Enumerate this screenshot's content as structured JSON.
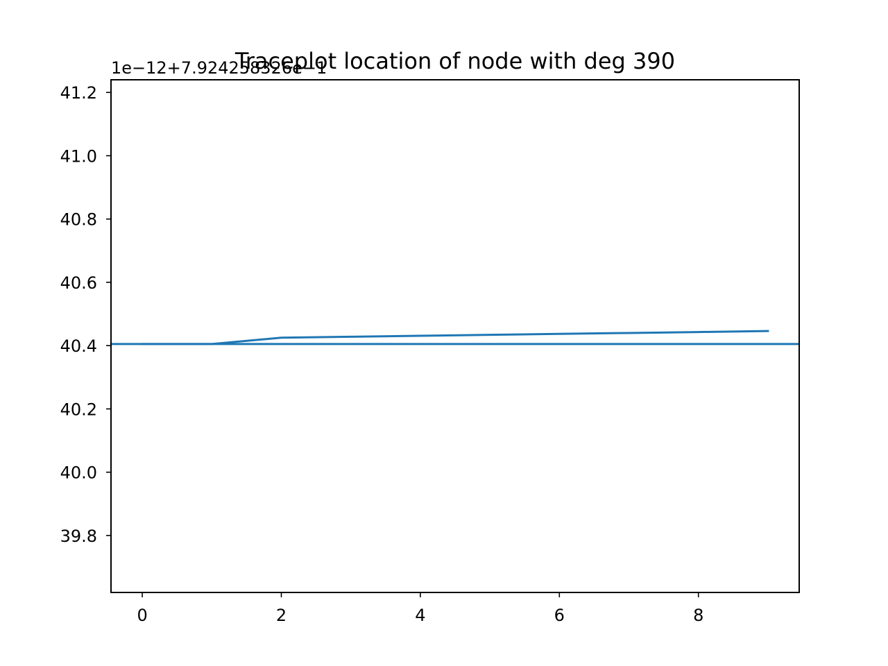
{
  "chart_data": {
    "type": "line",
    "title": "Traceplot location of node with deg 390",
    "xlabel": "",
    "ylabel": "",
    "y_offset_text": "1e−12+7.924258326e−1",
    "xlim": [
      -0.45,
      9.45
    ],
    "ylim": [
      39.62,
      41.24
    ],
    "x_ticks": [
      0,
      2,
      4,
      6,
      8
    ],
    "x_tick_labels": [
      "0",
      "2",
      "4",
      "6",
      "8"
    ],
    "y_ticks": [
      39.8,
      40.0,
      40.2,
      40.4,
      40.6,
      40.8,
      41.0,
      41.2
    ],
    "y_tick_labels": [
      "39.8",
      "40.0",
      "40.2",
      "40.4",
      "40.6",
      "40.8",
      "41.0",
      "41.2"
    ],
    "grid": false,
    "color": "#1f77b4",
    "series": [
      {
        "x": [
          0,
          1,
          2,
          3,
          4,
          5,
          6,
          7,
          8,
          9
        ],
        "values": [
          40.405,
          40.405,
          40.425,
          40.428,
          40.431,
          40.434,
          40.437,
          40.44,
          40.443,
          40.446
        ]
      }
    ],
    "reference_line": {
      "y": 40.405
    }
  }
}
